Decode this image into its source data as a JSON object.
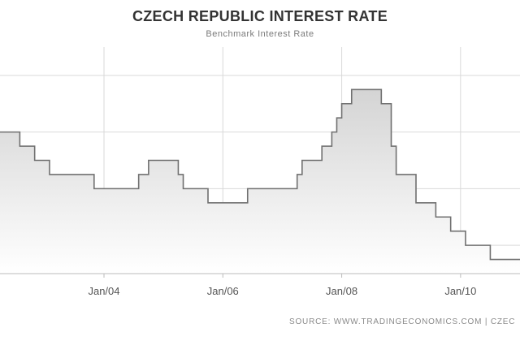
{
  "title": "CZECH REPUBLIC INTEREST RATE",
  "subtitle": "Benchmark Interest Rate",
  "source": "SOURCE: WWW.TRADINGECONOMICS.COM  |  CZEC",
  "colors": {
    "line": "#707070",
    "fill_top": "#d4d4d4",
    "fill_bottom": "#ffffff",
    "grid": "#d9d9d9",
    "axis": "#bbbbbb"
  },
  "chart_data": {
    "type": "area",
    "title": "CZECH REPUBLIC INTEREST RATE",
    "subtitle": "Benchmark Interest Rate",
    "xlabel": "",
    "ylabel": "",
    "x_ticks": [
      "Jan/04",
      "Jan/06",
      "Jan/08",
      "Jan/10"
    ],
    "xlim": [
      "2002-04",
      "2011-01"
    ],
    "ylim": [
      0.5,
      4.5
    ],
    "grid": true,
    "series": [
      {
        "dates": [
          "2002-04",
          "2002-06",
          "2002-08",
          "2002-09",
          "2002-11",
          "2003-01",
          "2003-02",
          "2003-06",
          "2003-11",
          "2004-06",
          "2004-08",
          "2004-10",
          "2005-03",
          "2005-04",
          "2005-05",
          "2005-10",
          "2006-05",
          "2006-06",
          "2006-09",
          "2006-11",
          "2007-04",
          "2007-05",
          "2007-08",
          "2007-09",
          "2007-11",
          "2007-12",
          "2008-01",
          "2008-03",
          "2008-07",
          "2008-09",
          "2008-10",
          "2008-11",
          "2008-12",
          "2009-01",
          "2009-04",
          "2009-08",
          "2009-09",
          "2009-11",
          "2010-01",
          "2010-02",
          "2010-07",
          "2011-01"
        ],
        "values": [
          3.0,
          3.0,
          2.75,
          2.75,
          2.5,
          2.5,
          2.25,
          2.25,
          2.0,
          2.0,
          2.25,
          2.5,
          2.5,
          2.25,
          2.0,
          1.75,
          1.75,
          2.0,
          2.0,
          2.0,
          2.25,
          2.5,
          2.5,
          2.75,
          3.0,
          3.25,
          3.5,
          3.75,
          3.75,
          3.5,
          3.5,
          2.75,
          2.25,
          2.25,
          1.75,
          1.5,
          1.5,
          1.25,
          1.25,
          1.0,
          0.75,
          0.75
        ]
      }
    ]
  }
}
